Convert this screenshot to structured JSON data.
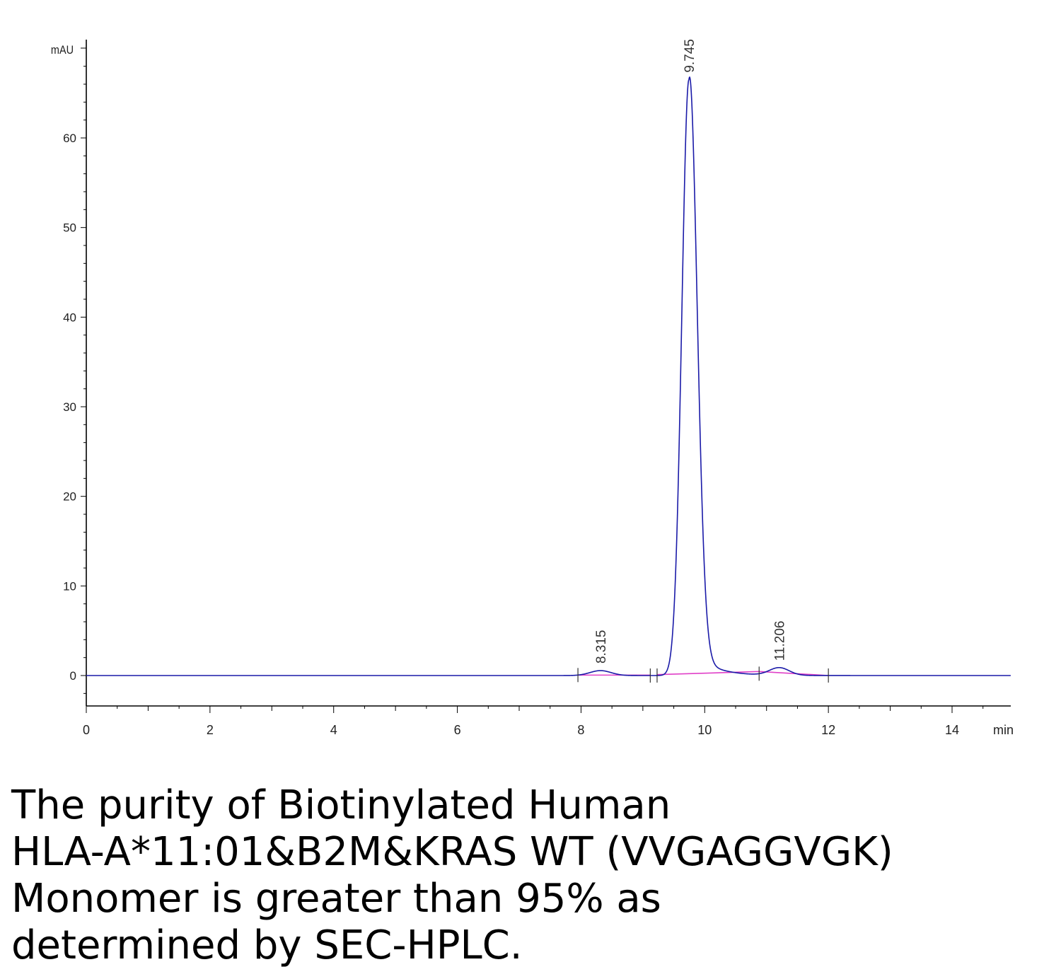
{
  "chart_data": {
    "type": "line",
    "ylabel": "mAU",
    "xlabel": "min",
    "xlim": [
      0,
      15
    ],
    "ylim": [
      -3.5,
      70
    ],
    "x_ticks": [
      0,
      2,
      4,
      6,
      8,
      10,
      12,
      14
    ],
    "y_ticks": [
      0,
      10,
      20,
      30,
      40,
      50,
      60
    ],
    "grid": false,
    "colors": {
      "trace": "#1a1aa8",
      "baseline": "#e040c8",
      "axis": "#000000",
      "peak_label": "#333333"
    },
    "peaks": [
      {
        "label": "8.315",
        "rt": 8.315,
        "height": 0.55
      },
      {
        "label": "9.745",
        "rt": 9.745,
        "height": 66.5
      },
      {
        "label": "11.206",
        "rt": 11.206,
        "height": 0.85
      }
    ],
    "integration_markers": [
      7.95,
      9.12,
      9.23,
      10.88,
      12.0
    ],
    "baseline_segments": [
      {
        "x": [
          7.95,
          9.12
        ],
        "y": [
          0.05,
          0.05
        ]
      },
      {
        "x": [
          9.23,
          10.88
        ],
        "y": [
          0.1,
          0.45
        ]
      },
      {
        "x": [
          10.88,
          12.0
        ],
        "y": [
          0.45,
          0.0
        ]
      }
    ]
  },
  "caption": {
    "line1": "The purity of Biotinylated Human",
    "line2": "HLA-A*11:01&B2M&KRAS WT (VVGAGGVGK)",
    "line3": "Monomer is greater than 95% as",
    "line4": "determined by SEC-HPLC."
  }
}
